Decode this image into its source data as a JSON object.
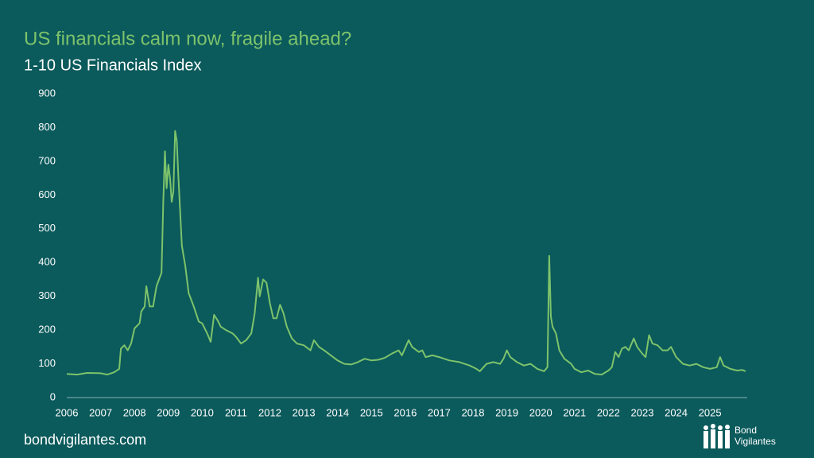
{
  "chart_data": {
    "type": "line",
    "title": "US financials calm now, fragile ahead?",
    "subtitle": "1-10 US Financials Index",
    "color": "#7dc36b",
    "xlim": [
      2006,
      2026.1
    ],
    "xticks": [
      2006,
      2007,
      2008,
      2009,
      2010,
      2011,
      2012,
      2013,
      2014,
      2015,
      2016,
      2017,
      2018,
      2019,
      2020,
      2021,
      2022,
      2023,
      2024,
      2025
    ],
    "ylim": [
      0,
      900
    ],
    "yticks": [
      0,
      100,
      200,
      300,
      400,
      500,
      600,
      700,
      800,
      900
    ],
    "grid": false,
    "x": [
      2006.0,
      2006.3,
      2006.6,
      2007.0,
      2007.2,
      2007.4,
      2007.55,
      2007.6,
      2007.7,
      2007.8,
      2007.9,
      2008.0,
      2008.15,
      2008.2,
      2008.3,
      2008.35,
      2008.45,
      2008.55,
      2008.65,
      2008.8,
      2008.85,
      2008.9,
      2008.95,
      2009.0,
      2009.05,
      2009.1,
      2009.15,
      2009.2,
      2009.25,
      2009.3,
      2009.4,
      2009.5,
      2009.6,
      2009.75,
      2009.9,
      2010.0,
      2010.15,
      2010.25,
      2010.35,
      2010.45,
      2010.55,
      2010.7,
      2010.9,
      2011.0,
      2011.15,
      2011.3,
      2011.45,
      2011.55,
      2011.65,
      2011.7,
      2011.8,
      2011.9,
      2012.0,
      2012.1,
      2012.2,
      2012.3,
      2012.4,
      2012.5,
      2012.65,
      2012.8,
      2013.0,
      2013.2,
      2013.3,
      2013.45,
      2013.6,
      2013.8,
      2014.0,
      2014.2,
      2014.4,
      2014.6,
      2014.8,
      2015.0,
      2015.2,
      2015.4,
      2015.6,
      2015.8,
      2015.9,
      2016.1,
      2016.2,
      2016.4,
      2016.5,
      2016.6,
      2016.8,
      2017.0,
      2017.3,
      2017.6,
      2017.9,
      2018.1,
      2018.2,
      2018.4,
      2018.6,
      2018.8,
      2018.9,
      2019.0,
      2019.1,
      2019.3,
      2019.5,
      2019.7,
      2019.9,
      2020.1,
      2020.2,
      2020.25,
      2020.3,
      2020.35,
      2020.45,
      2020.55,
      2020.7,
      2020.9,
      2021.0,
      2021.2,
      2021.4,
      2021.6,
      2021.8,
      2022.0,
      2022.1,
      2022.2,
      2022.3,
      2022.4,
      2022.5,
      2022.6,
      2022.75,
      2022.85,
      2023.0,
      2023.1,
      2023.2,
      2023.3,
      2023.45,
      2023.6,
      2023.75,
      2023.85,
      2024.0,
      2024.2,
      2024.4,
      2024.6,
      2024.8,
      2025.0,
      2025.2,
      2025.3,
      2025.4,
      2025.6,
      2025.8,
      2025.95,
      2026.05
    ],
    "values": [
      70,
      68,
      73,
      72,
      68,
      75,
      85,
      145,
      155,
      140,
      160,
      205,
      220,
      255,
      270,
      330,
      270,
      270,
      330,
      370,
      580,
      730,
      620,
      690,
      650,
      580,
      610,
      790,
      760,
      650,
      450,
      390,
      310,
      270,
      225,
      220,
      190,
      165,
      245,
      230,
      210,
      200,
      190,
      180,
      160,
      170,
      190,
      250,
      355,
      300,
      350,
      340,
      280,
      235,
      235,
      275,
      250,
      210,
      175,
      160,
      155,
      140,
      170,
      150,
      140,
      125,
      110,
      100,
      98,
      105,
      115,
      110,
      112,
      118,
      130,
      140,
      125,
      170,
      150,
      135,
      140,
      120,
      125,
      120,
      110,
      105,
      95,
      85,
      78,
      100,
      105,
      100,
      115,
      140,
      120,
      105,
      95,
      100,
      85,
      78,
      90,
      420,
      240,
      210,
      190,
      140,
      115,
      100,
      85,
      75,
      80,
      70,
      68,
      80,
      90,
      135,
      120,
      145,
      150,
      140,
      175,
      150,
      130,
      120,
      185,
      160,
      155,
      140,
      140,
      150,
      120,
      100,
      95,
      100,
      90,
      85,
      90,
      120,
      95,
      85,
      80,
      82,
      78
    ]
  },
  "footer": {
    "site": "bondvigilantes.com",
    "logo": [
      "Bond",
      "Vigilantes"
    ]
  }
}
